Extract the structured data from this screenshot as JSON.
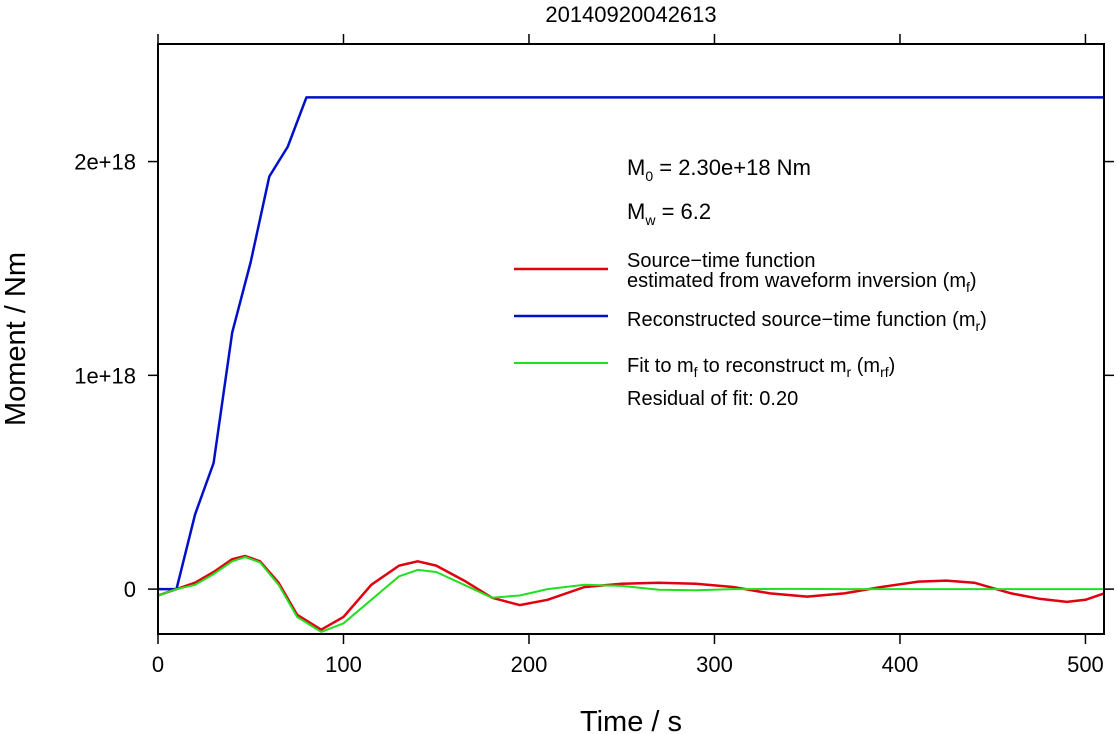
{
  "chart_data": {
    "type": "line",
    "title": "20140920042613",
    "xlabel": "Time / s",
    "ylabel": "Moment / Nm",
    "xlim": [
      0,
      510
    ],
    "ylim": [
      -2.1e+17,
      2.55e+18
    ],
    "x_ticks": [
      0,
      100,
      200,
      300,
      400,
      500
    ],
    "x_tick_labels": [
      "0",
      "100",
      "200",
      "300",
      "400",
      "500"
    ],
    "y_ticks": [
      0,
      1e+18,
      2e+18
    ],
    "y_tick_labels": [
      "0",
      "1e+18",
      "2e+18"
    ],
    "grid": false,
    "legend_position": "right",
    "annotations": {
      "m0_main": "M",
      "m0_sub": "0",
      "m0_value": " = 2.30e+18 Nm",
      "mw_main": "M",
      "mw_sub": "w",
      "mw_value": " = 6.2",
      "residual": "Residual of fit: 0.20"
    },
    "legend": [
      {
        "key": "mf",
        "color": "#e0000f",
        "line1": "Source−time function",
        "line2_text": "estimated from waveform inversion (m",
        "line2_sub": "f",
        "line2_end": ")"
      },
      {
        "key": "mr",
        "color": "#0010c8",
        "text": "Reconstructed source−time function (m",
        "sub": "r",
        "end": ")"
      },
      {
        "key": "mrf",
        "color": "#20e020",
        "t1": "Fit to m",
        "s1": "f",
        "t2": " to reconstruct m",
        "s2": "r",
        "t3": " (m",
        "s3": "rf",
        "t4": ")"
      }
    ],
    "series": [
      {
        "key": "mr",
        "color": "#0010c8",
        "x": [
          0,
          10,
          20,
          30,
          40,
          50,
          60,
          70,
          80,
          90,
          100,
          510
        ],
        "y": [
          0,
          0,
          3.5e+17,
          5.9e+17,
          1.2e+18,
          1.53e+18,
          1.93e+18,
          2.07e+18,
          2.3e+18,
          2.3e+18,
          2.3e+18,
          2.3e+18
        ]
      },
      {
        "key": "mf",
        "color": "#e0000f",
        "x": [
          0,
          10,
          20,
          30,
          40,
          47,
          55,
          65,
          75,
          88,
          100,
          115,
          130,
          140,
          150,
          165,
          180,
          195,
          210,
          230,
          250,
          270,
          290,
          310,
          330,
          350,
          370,
          390,
          410,
          425,
          440,
          460,
          475,
          490,
          500,
          510
        ],
        "y": [
          -3e+16,
          0,
          3e+16,
          8e+16,
          1.4e+17,
          1.55e+17,
          1.3e+17,
          3e+16,
          -1.2e+17,
          -1.9e+17,
          -1.3e+17,
          2e+16,
          1.1e+17,
          1.3e+17,
          1.1e+17,
          4e+16,
          -4e+16,
          -7.5e+16,
          -5e+16,
          1e+16,
          2.5e+16,
          3e+16,
          2.5e+16,
          1e+16,
          -2e+16,
          -3.5e+16,
          -2e+16,
          1e+16,
          3.5e+16,
          4e+16,
          3e+16,
          -2e+16,
          -4.5e+16,
          -6e+16,
          -5e+16,
          -2e+16
        ]
      },
      {
        "key": "mrf",
        "color": "#20e020",
        "x": [
          0,
          10,
          20,
          30,
          40,
          47,
          55,
          65,
          75,
          88,
          100,
          115,
          130,
          140,
          150,
          165,
          180,
          195,
          210,
          230,
          250,
          270,
          290,
          310,
          340,
          370,
          400,
          430,
          460,
          510
        ],
        "y": [
          -3e+16,
          0,
          2e+16,
          7e+16,
          1.3e+17,
          1.5e+17,
          1.25e+17,
          2e+16,
          -1.3e+17,
          -2e+17,
          -1.6e+17,
          -5e+16,
          6e+16,
          9e+16,
          8e+16,
          2e+16,
          -4e+16,
          -3e+16,
          0,
          2e+16,
          1.5e+16,
          -3000000000000000.0,
          -5000000000000000.0,
          0,
          1000000000000000.0,
          0,
          0,
          0,
          0,
          0
        ]
      }
    ]
  }
}
